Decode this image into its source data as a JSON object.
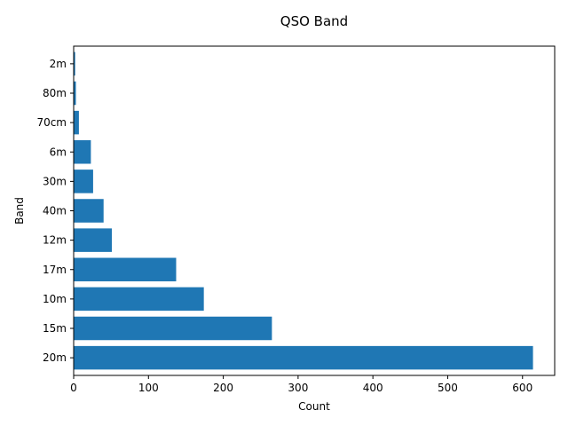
{
  "chart_data": {
    "type": "bar",
    "orientation": "horizontal",
    "title": "QSO Band",
    "xlabel": "Count",
    "ylabel": "Band",
    "categories": [
      "20m",
      "15m",
      "10m",
      "17m",
      "12m",
      "40m",
      "30m",
      "6m",
      "70cm",
      "80m",
      "2m"
    ],
    "values": [
      614,
      265,
      174,
      137,
      51,
      40,
      26,
      23,
      7,
      3,
      2
    ],
    "xlim": [
      0,
      643
    ],
    "xticks": [
      0,
      100,
      200,
      300,
      400,
      500,
      600
    ],
    "grid": false,
    "bar_color": "#1f77b4"
  }
}
